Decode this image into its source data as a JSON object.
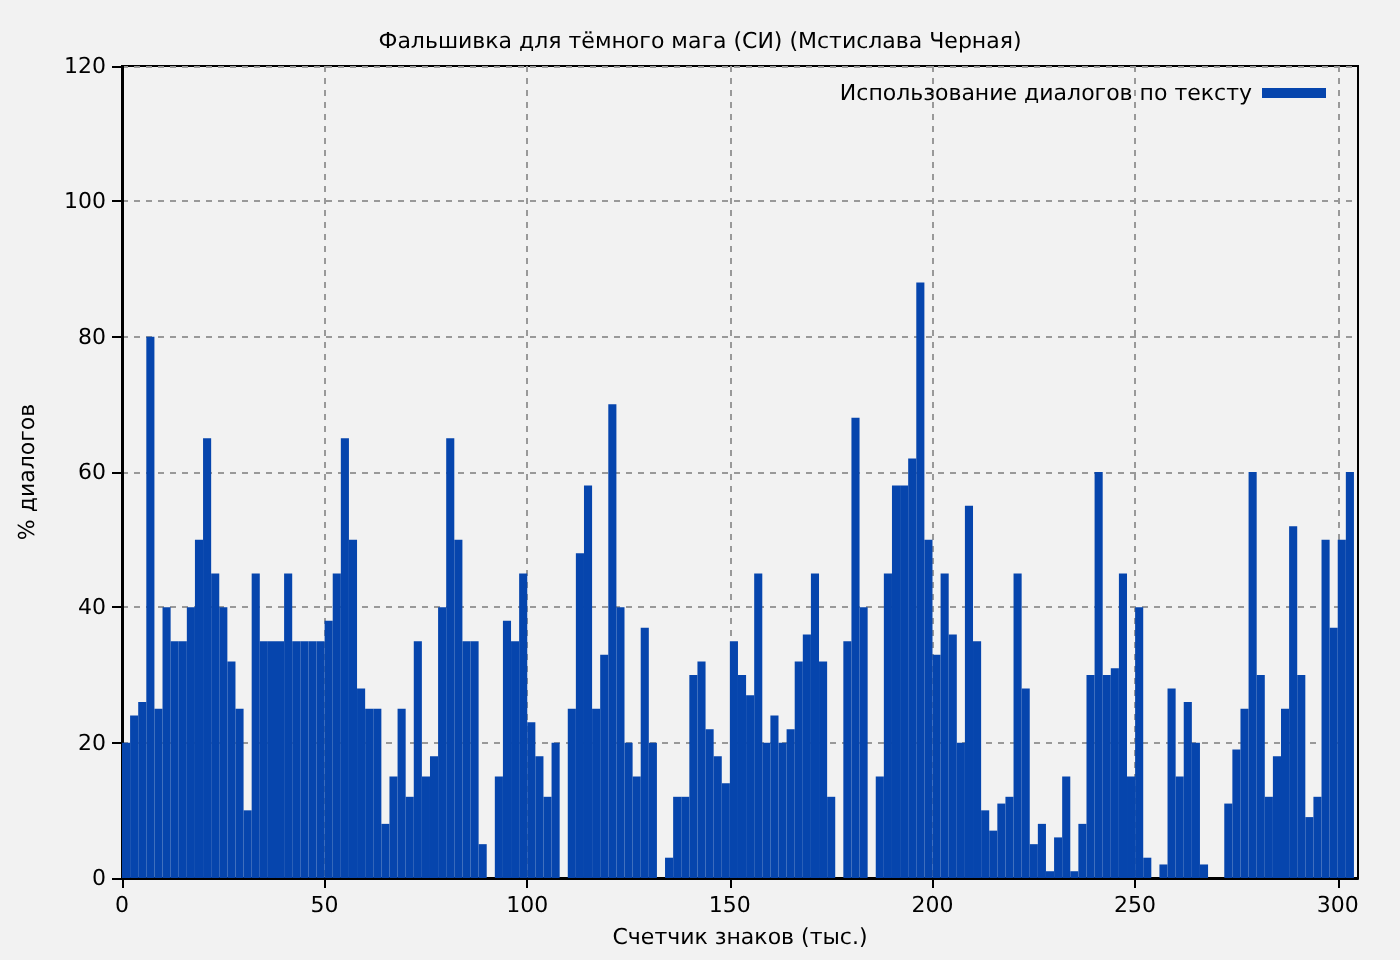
{
  "chart_data": {
    "type": "histogram",
    "title": "Фальшивка для тёмного мага (СИ) (Мстислава Черная)",
    "xlabel": "Счетчик знаков (тыс.)",
    "ylabel": "% диалогов",
    "bins": [
      0,
      2,
      4,
      6,
      8,
      10,
      12,
      14,
      16,
      18,
      20,
      22,
      24,
      26,
      28,
      30,
      32,
      34,
      36,
      38,
      40,
      42,
      44,
      46,
      48,
      50,
      52,
      54,
      56,
      58,
      60,
      62,
      64,
      66,
      68,
      70,
      72,
      74,
      76,
      78,
      80,
      82,
      84,
      86,
      88,
      90,
      92,
      94,
      96,
      98,
      100,
      102,
      104,
      106,
      108,
      110,
      112,
      114,
      116,
      118,
      120,
      122,
      124,
      126,
      128,
      130,
      132,
      134,
      136,
      138,
      140,
      142,
      144,
      146,
      148,
      150,
      152,
      154,
      156,
      158,
      160,
      162,
      164,
      166,
      168,
      170,
      172,
      174,
      176,
      178,
      180,
      182,
      184,
      186,
      188,
      190,
      192,
      194,
      196,
      198,
      200,
      202,
      204,
      206,
      208,
      210,
      212,
      214,
      216,
      218,
      220,
      222,
      224,
      226,
      228,
      230,
      232,
      234,
      236,
      238,
      240,
      242,
      244,
      246,
      248,
      250,
      252,
      254,
      256,
      258,
      260,
      262,
      264,
      266,
      268,
      270,
      272,
      274,
      276,
      278,
      280,
      282,
      284,
      286,
      288,
      290,
      292,
      294,
      296,
      298,
      300,
      302,
      304
    ],
    "series": [
      {
        "name": "Использование диалогов по тексту",
        "color": "#0645ad",
        "values": [
          20,
          24,
          26,
          80,
          25,
          40,
          35,
          35,
          40,
          50,
          65,
          45,
          40,
          32,
          25,
          10,
          45,
          35,
          35,
          35,
          45,
          35,
          35,
          35,
          35,
          38,
          45,
          65,
          50,
          28,
          25,
          25,
          8,
          15,
          25,
          12,
          35,
          15,
          18,
          40,
          65,
          50,
          35,
          35,
          5,
          0,
          15,
          38,
          35,
          45,
          23,
          18,
          12,
          20,
          0,
          25,
          48,
          58,
          25,
          33,
          70,
          40,
          20,
          15,
          37,
          20,
          0,
          3,
          12,
          12,
          30,
          32,
          22,
          18,
          14,
          35,
          30,
          27,
          45,
          20,
          24,
          20,
          22,
          32,
          36,
          45,
          32,
          12,
          0,
          35,
          68,
          40,
          0,
          15,
          45,
          58,
          58,
          62,
          88,
          50,
          33,
          45,
          36,
          20,
          55,
          35,
          10,
          7,
          11,
          12,
          45,
          28,
          5,
          8,
          1,
          6,
          15,
          1,
          8,
          30,
          60,
          30,
          31,
          45,
          15,
          40,
          3,
          0,
          2,
          28,
          15,
          26,
          20,
          2,
          0,
          0,
          11,
          19,
          25,
          60,
          30,
          12,
          18,
          25,
          52,
          30,
          9,
          12,
          50,
          37,
          50,
          60
        ]
      }
    ],
    "xlim": [
      0,
      305
    ],
    "xticks": [
      0,
      50,
      100,
      150,
      200,
      250,
      300
    ],
    "ylim": [
      0,
      120
    ],
    "yticks": [
      0,
      20,
      40,
      60,
      80,
      100,
      120
    ],
    "grid": true,
    "legend": "top right"
  }
}
